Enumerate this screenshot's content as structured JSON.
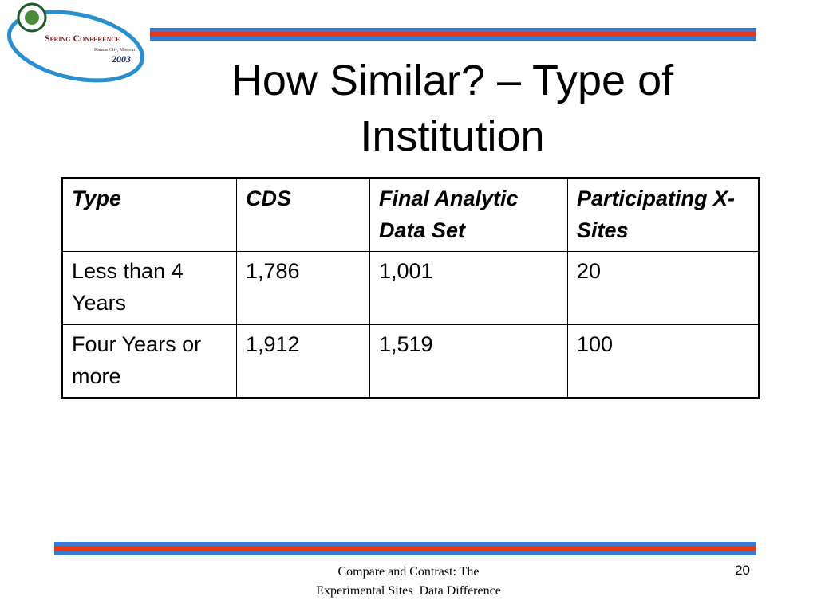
{
  "logo": {
    "name": "Spring Conference",
    "place": "Kansas City, Missouri",
    "year": "2003"
  },
  "title": "How Similar? – Type of Institution",
  "table": {
    "header": [
      "Type",
      "CDS",
      "Final Analytic Data Set",
      "Participating X-Sites"
    ],
    "rows": [
      [
        "Less than 4 Years",
        "1,786",
        "1,001",
        "20"
      ],
      [
        "Four Years or more",
        "1,912",
        "1,519",
        "100"
      ]
    ]
  },
  "footer": {
    "lines": [
      "Compare and Contrast: The",
      "Experimental Sites  Data Difference"
    ]
  },
  "page_number": "20"
}
